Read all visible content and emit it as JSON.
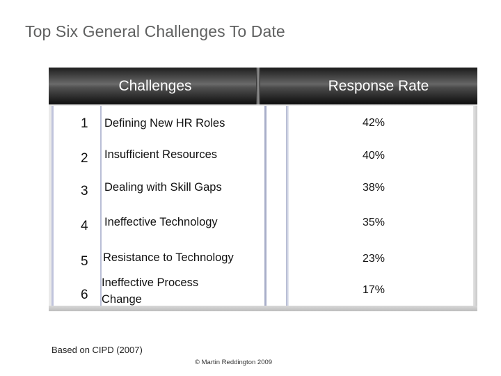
{
  "title": "Top Six General Challenges To Date",
  "table": {
    "header_challenges": "Challenges",
    "header_response": "Response Rate",
    "rows": [
      {
        "rank": "1",
        "label": "Defining New HR Roles",
        "rate": "42%"
      },
      {
        "rank": "2",
        "label": "Insufficient Resources",
        "rate": "40%"
      },
      {
        "rank": "3",
        "label": "Dealing with Skill Gaps",
        "rate": "38%"
      },
      {
        "rank": "4",
        "label": "Ineffective Technology",
        "rate": "35%"
      },
      {
        "rank": "5",
        "label": "Resistance to Technology",
        "rate": "23%"
      },
      {
        "rank": "6",
        "label_line1": "Ineffective Process",
        "label_line2": "Change",
        "rate": "17%"
      }
    ]
  },
  "footnote": "Based on CIPD (2007)",
  "copyright": "© Martin Reddington 2009"
}
